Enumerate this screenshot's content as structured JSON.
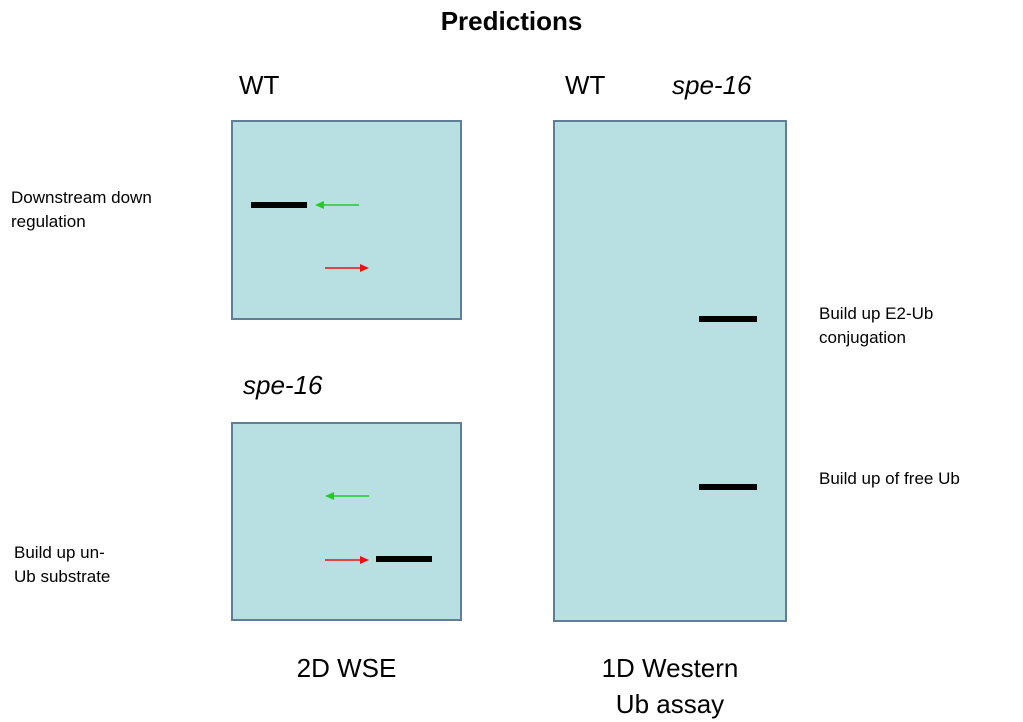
{
  "title": "Predictions",
  "left": {
    "top_label": "WT",
    "bottom_label": "spe-16",
    "caption": "2D WSE",
    "annotations": {
      "downstream": "Downstream down regulation",
      "buildup": "Build up un- Ub substrate"
    }
  },
  "right": {
    "lane1_label": "WT",
    "lane2_label": "spe-16",
    "caption_line1": "1D Western",
    "caption_line2": "Ub assay",
    "annotations": {
      "e2": "Build up E2-Ub conjugation",
      "free": "Build up of free Ub"
    }
  },
  "colors": {
    "panel_fill": "#b8dfe2",
    "panel_border": "#5e7f97",
    "band": "#000000",
    "arrow_left": "#22cc22",
    "arrow_right": "#ee1111"
  }
}
